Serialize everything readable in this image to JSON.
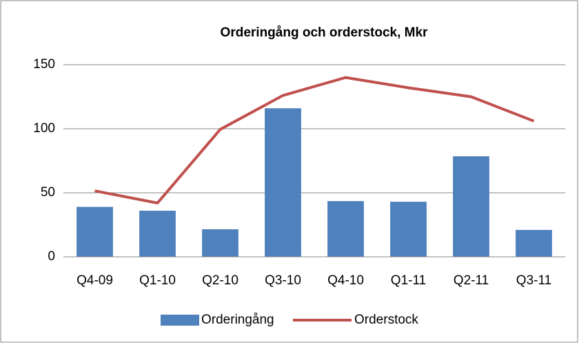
{
  "chart_data": {
    "type": "bar",
    "title": "Orderingång och orderstock, Mkr",
    "categories": [
      "Q4-09",
      "Q1-10",
      "Q2-10",
      "Q3-10",
      "Q4-10",
      "Q1-11",
      "Q2-11",
      "Q3-11"
    ],
    "series": [
      {
        "name": "Orderingång",
        "type": "bar",
        "color": "#4f81bd",
        "values": [
          39,
          36,
          21.5,
          116,
          43.5,
          43,
          78.5,
          21
        ]
      },
      {
        "name": "Orderstock",
        "type": "line",
        "color": "#c0504d",
        "values": [
          51.5,
          42,
          99.5,
          126,
          140,
          132,
          125,
          106
        ]
      }
    ],
    "ylim": [
      0,
      150
    ],
    "yticks": [
      0,
      50,
      100,
      150
    ],
    "grid": true,
    "legend": "bottom"
  }
}
